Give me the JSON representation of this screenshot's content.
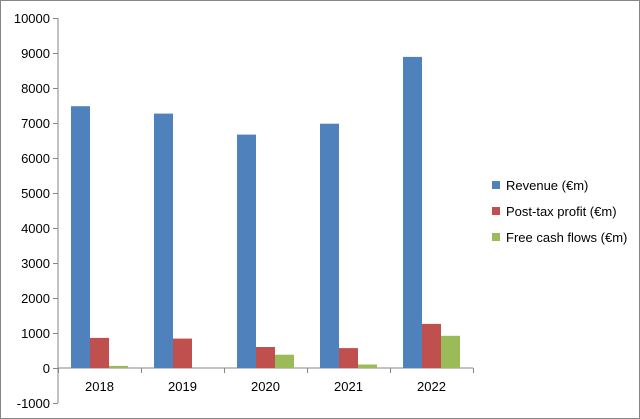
{
  "chart_data": {
    "type": "bar",
    "title": "",
    "xlabel": "",
    "ylabel": "",
    "categories": [
      "2018",
      "2019",
      "2020",
      "2021",
      "2022"
    ],
    "series": [
      {
        "name": "Revenue (€m)",
        "color": "#4F81BD",
        "values": [
          7480,
          7270,
          6670,
          6980,
          8890
        ]
      },
      {
        "name": "Post-tax profit (€m)",
        "color": "#C0504D",
        "values": [
          860,
          840,
          600,
          570,
          1260
        ]
      },
      {
        "name": "Free cash flows (€m)",
        "color": "#9BBB59",
        "values": [
          60,
          0,
          380,
          100,
          920
        ]
      }
    ],
    "ylim": [
      -1000,
      10000
    ],
    "yticks": [
      -1000,
      0,
      1000,
      2000,
      3000,
      4000,
      5000,
      6000,
      7000,
      8000,
      9000,
      10000
    ],
    "grid": false,
    "legend_position": "right"
  }
}
